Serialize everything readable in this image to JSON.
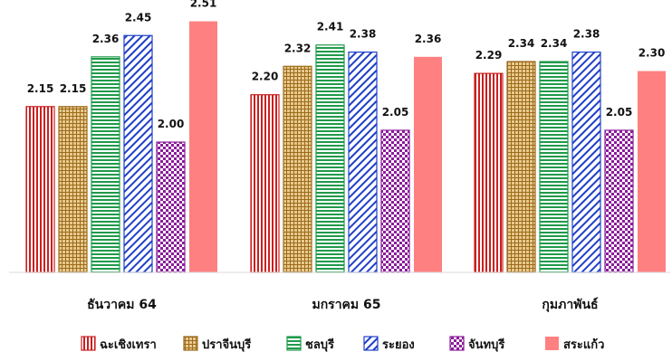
{
  "chart_data": {
    "type": "bar",
    "categories": [
      "ธันวาคม 64",
      "มกราคม 65",
      "กุมภาพันธ์"
    ],
    "series": [
      {
        "name": "ฉะเชิงเทรา",
        "values": [
          2.15,
          2.2,
          2.29
        ],
        "color": "#cc1f1f",
        "pattern": "vertical-lines"
      },
      {
        "name": "ปราจีนบุรี",
        "values": [
          2.15,
          2.32,
          2.34
        ],
        "color": "#9a6b1c",
        "pattern": "grid-dots"
      },
      {
        "name": "ชลบุรี",
        "values": [
          2.36,
          2.41,
          2.34
        ],
        "color": "#1f9a4a",
        "pattern": "horizontal-lines"
      },
      {
        "name": "ระยอง",
        "values": [
          2.45,
          2.38,
          2.38
        ],
        "color": "#1f3fc8",
        "pattern": "diagonal-lines"
      },
      {
        "name": "จันทบุรี",
        "values": [
          2.0,
          2.05,
          2.05
        ],
        "color": "#8a1d9a",
        "pattern": "checker"
      },
      {
        "name": "สระแก้ว",
        "values": [
          2.51,
          2.36,
          2.3
        ],
        "color": "#ff8080",
        "pattern": "solid"
      }
    ],
    "ylim": [
      1.45,
      2.6
    ],
    "grid": false,
    "legend": "bottom"
  }
}
